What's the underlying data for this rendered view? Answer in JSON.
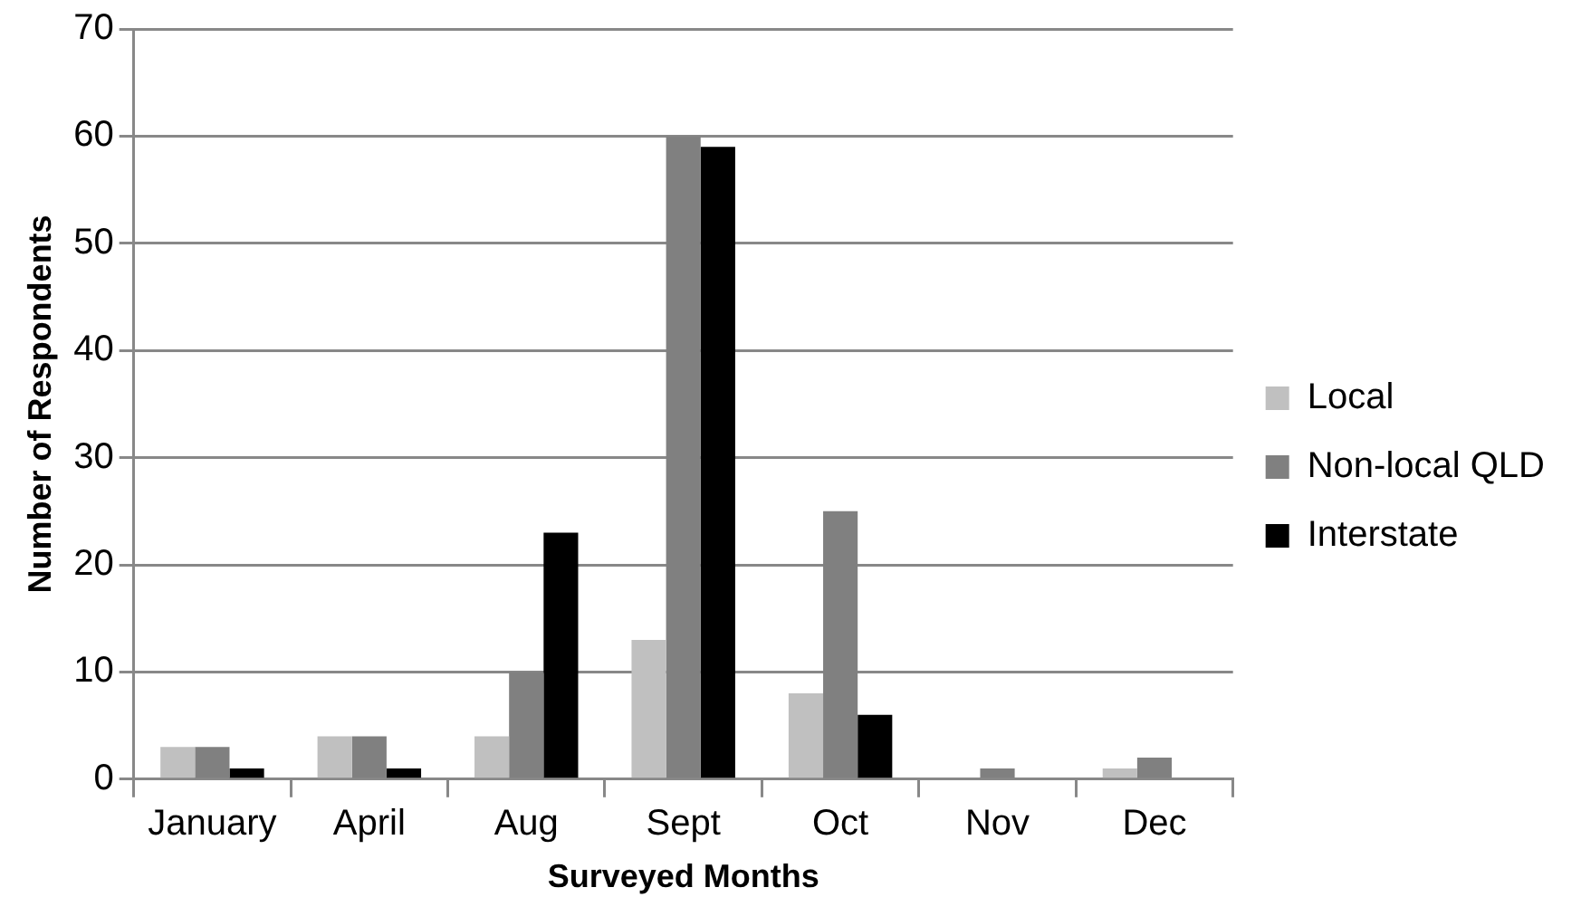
{
  "chart_data": {
    "type": "bar",
    "xlabel": "Surveyed Months",
    "ylabel": "Number of Respondents",
    "categories": [
      "January",
      "April",
      "Aug",
      "Sept",
      "Oct",
      "Nov",
      "Dec"
    ],
    "series": [
      {
        "name": "Local",
        "color": "#c0c0c0",
        "values": [
          3,
          4,
          4,
          13,
          8,
          0,
          1
        ]
      },
      {
        "name": "Non-local QLD",
        "color": "#808080",
        "values": [
          3,
          4,
          10,
          60,
          25,
          1,
          2
        ]
      },
      {
        "name": "Interstate",
        "color": "#000000",
        "values": [
          1,
          1,
          23,
          59,
          6,
          0,
          0
        ]
      }
    ],
    "ylim": [
      0,
      70
    ],
    "yticks": [
      0,
      10,
      20,
      30,
      40,
      50,
      60,
      70
    ],
    "grid": "y",
    "legend": "right"
  }
}
